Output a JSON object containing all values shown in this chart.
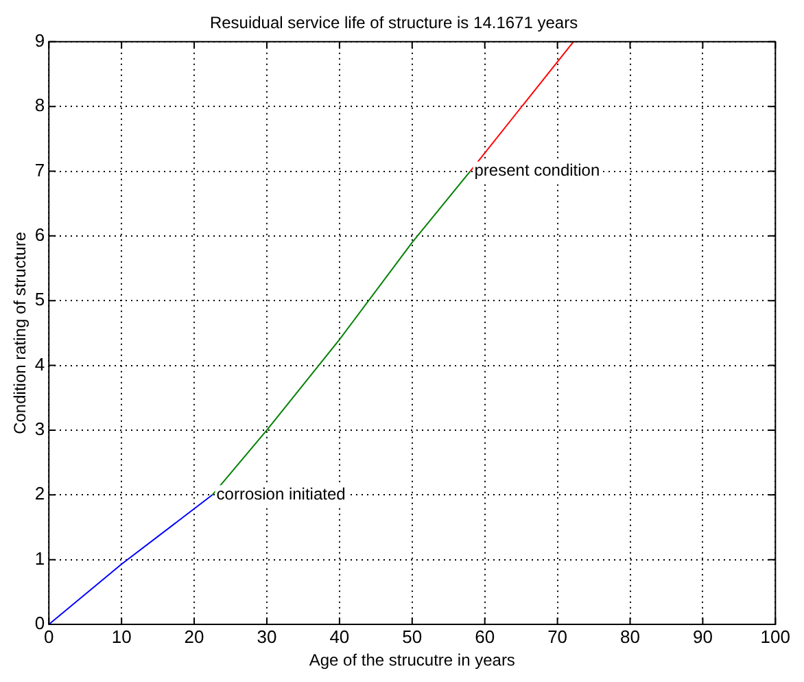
{
  "chart_data": {
    "type": "line",
    "title": "Resuidual service life of structure is 14.1671 years",
    "xlabel": "Age of the strucutre in years",
    "ylabel": "Condition rating of structure",
    "series": [
      {
        "x": [
          0,
          10,
          22.5
        ],
        "values": [
          0,
          0.93,
          2
        ],
        "color": "#0000ff"
      },
      {
        "x": [
          22.5,
          30,
          40,
          50,
          58
        ],
        "values": [
          2,
          3.0,
          4.4,
          5.9,
          7
        ],
        "color": "#008000"
      },
      {
        "x": [
          58,
          72.2
        ],
        "values": [
          7,
          9
        ],
        "color": "#ff0000"
      }
    ],
    "xlim": [
      0,
      100
    ],
    "xticks": [
      0,
      10,
      20,
      30,
      40,
      50,
      60,
      70,
      80,
      90,
      100
    ],
    "ylim": [
      0,
      9
    ],
    "yticks": [
      0,
      1,
      2,
      3,
      4,
      5,
      6,
      7,
      8,
      9
    ],
    "grid": true,
    "legend": false,
    "marker": "none",
    "line_style": "solid",
    "annotations": [
      {
        "text": "corrosion initiated",
        "x": 22.5,
        "y": 2
      },
      {
        "text": "present condition",
        "x": 58,
        "y": 7
      }
    ]
  }
}
